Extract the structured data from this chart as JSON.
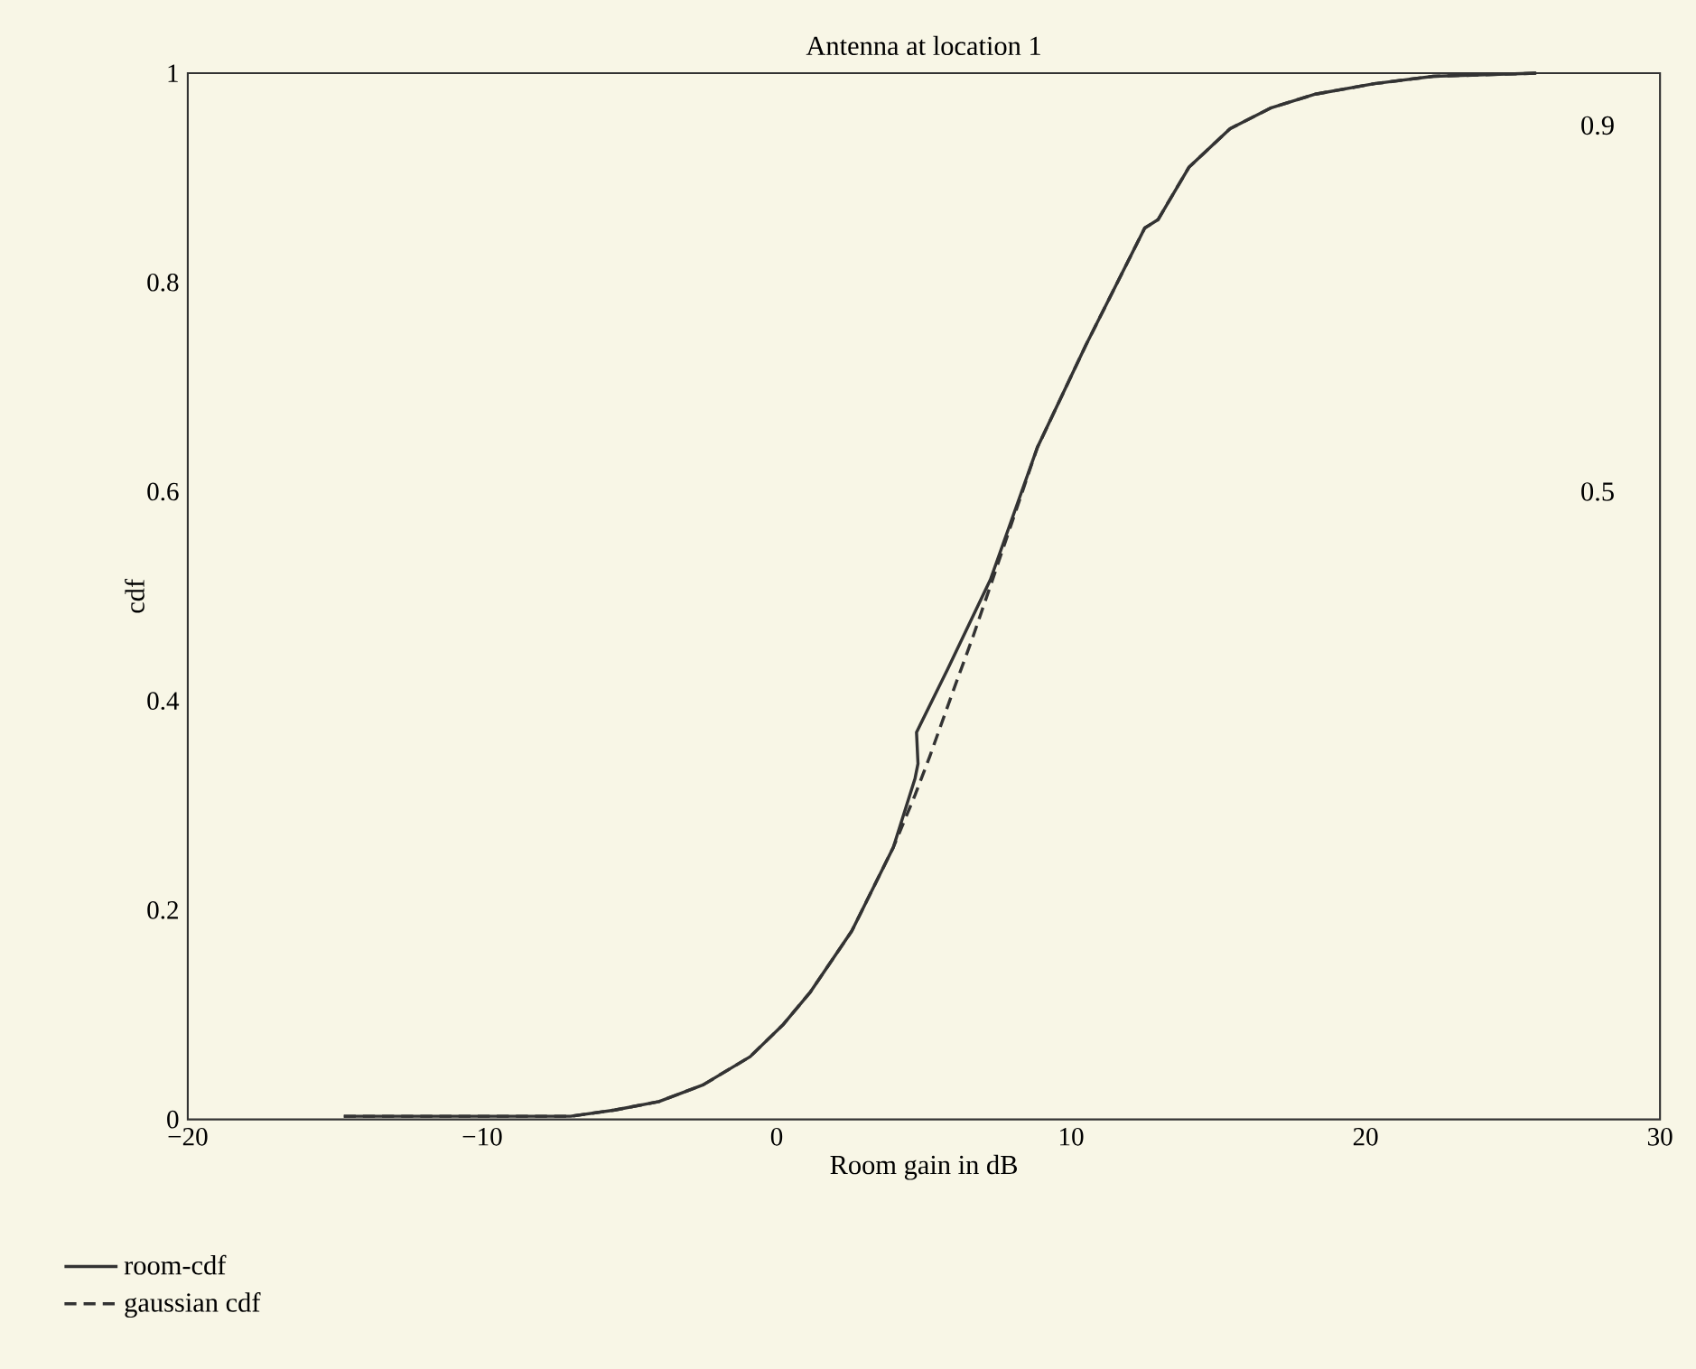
{
  "chart_data": {
    "type": "line",
    "title": "Antenna at location 1",
    "xlabel": "Room gain in dB",
    "ylabel": "cdf",
    "xlim": [
      -20,
      30
    ],
    "xticks": [
      {
        "value": -20,
        "label": "−20"
      },
      {
        "value": -10,
        "label": "−10"
      },
      0,
      10,
      20,
      30
    ],
    "ylim": [
      0,
      1
    ],
    "yticks": [
      0,
      0.2,
      0.4,
      0.6,
      0.8,
      1
    ],
    "grid": false,
    "legend": "bottom left",
    "annotations": [
      "0.9",
      "0.5"
    ],
    "series": [
      {
        "name": "room-cdf",
        "color": "#333333",
        "line_style": "solid",
        "x": [
          -14.7,
          -10,
          -7.0,
          -5.5,
          -4.0,
          -2.5,
          -0.9,
          0.2,
          1.15,
          2.55,
          3.96,
          4.7,
          4.8,
          4.75,
          5.8,
          7.26,
          8.85,
          10.5,
          12.5,
          12.95,
          14.0,
          15.4,
          16.8,
          18.3,
          20.3,
          22.3,
          25.8
        ],
        "values": [
          0.003,
          0.003,
          0.003,
          0.009,
          0.017,
          0.033,
          0.06,
          0.09,
          0.122,
          0.18,
          0.26,
          0.326,
          0.34,
          0.37,
          0.43,
          0.516,
          0.642,
          0.74,
          0.852,
          0.86,
          0.91,
          0.947,
          0.967,
          0.98,
          0.99,
          0.997,
          1.0
        ]
      },
      {
        "name": "gaussian cdf",
        "color": "#333333",
        "line_style": "dashed",
        "x": [
          -14.7,
          -10,
          -7.0,
          -5.5,
          -4.0,
          -2.5,
          -0.9,
          0.2,
          1.15,
          2.55,
          3.96,
          4.7,
          5.2,
          6.0,
          6.65,
          7.26,
          8.85,
          10.5,
          12.5,
          12.95,
          14.0,
          15.4,
          16.8,
          18.3,
          20.3,
          22.3,
          25.8
        ],
        "values": [
          0.003,
          0.003,
          0.003,
          0.009,
          0.017,
          0.033,
          0.06,
          0.09,
          0.122,
          0.18,
          0.26,
          0.31,
          0.347,
          0.41,
          0.46,
          0.51,
          0.642,
          0.74,
          0.852,
          0.86,
          0.91,
          0.947,
          0.967,
          0.98,
          0.99,
          0.997,
          1.0
        ]
      }
    ]
  }
}
